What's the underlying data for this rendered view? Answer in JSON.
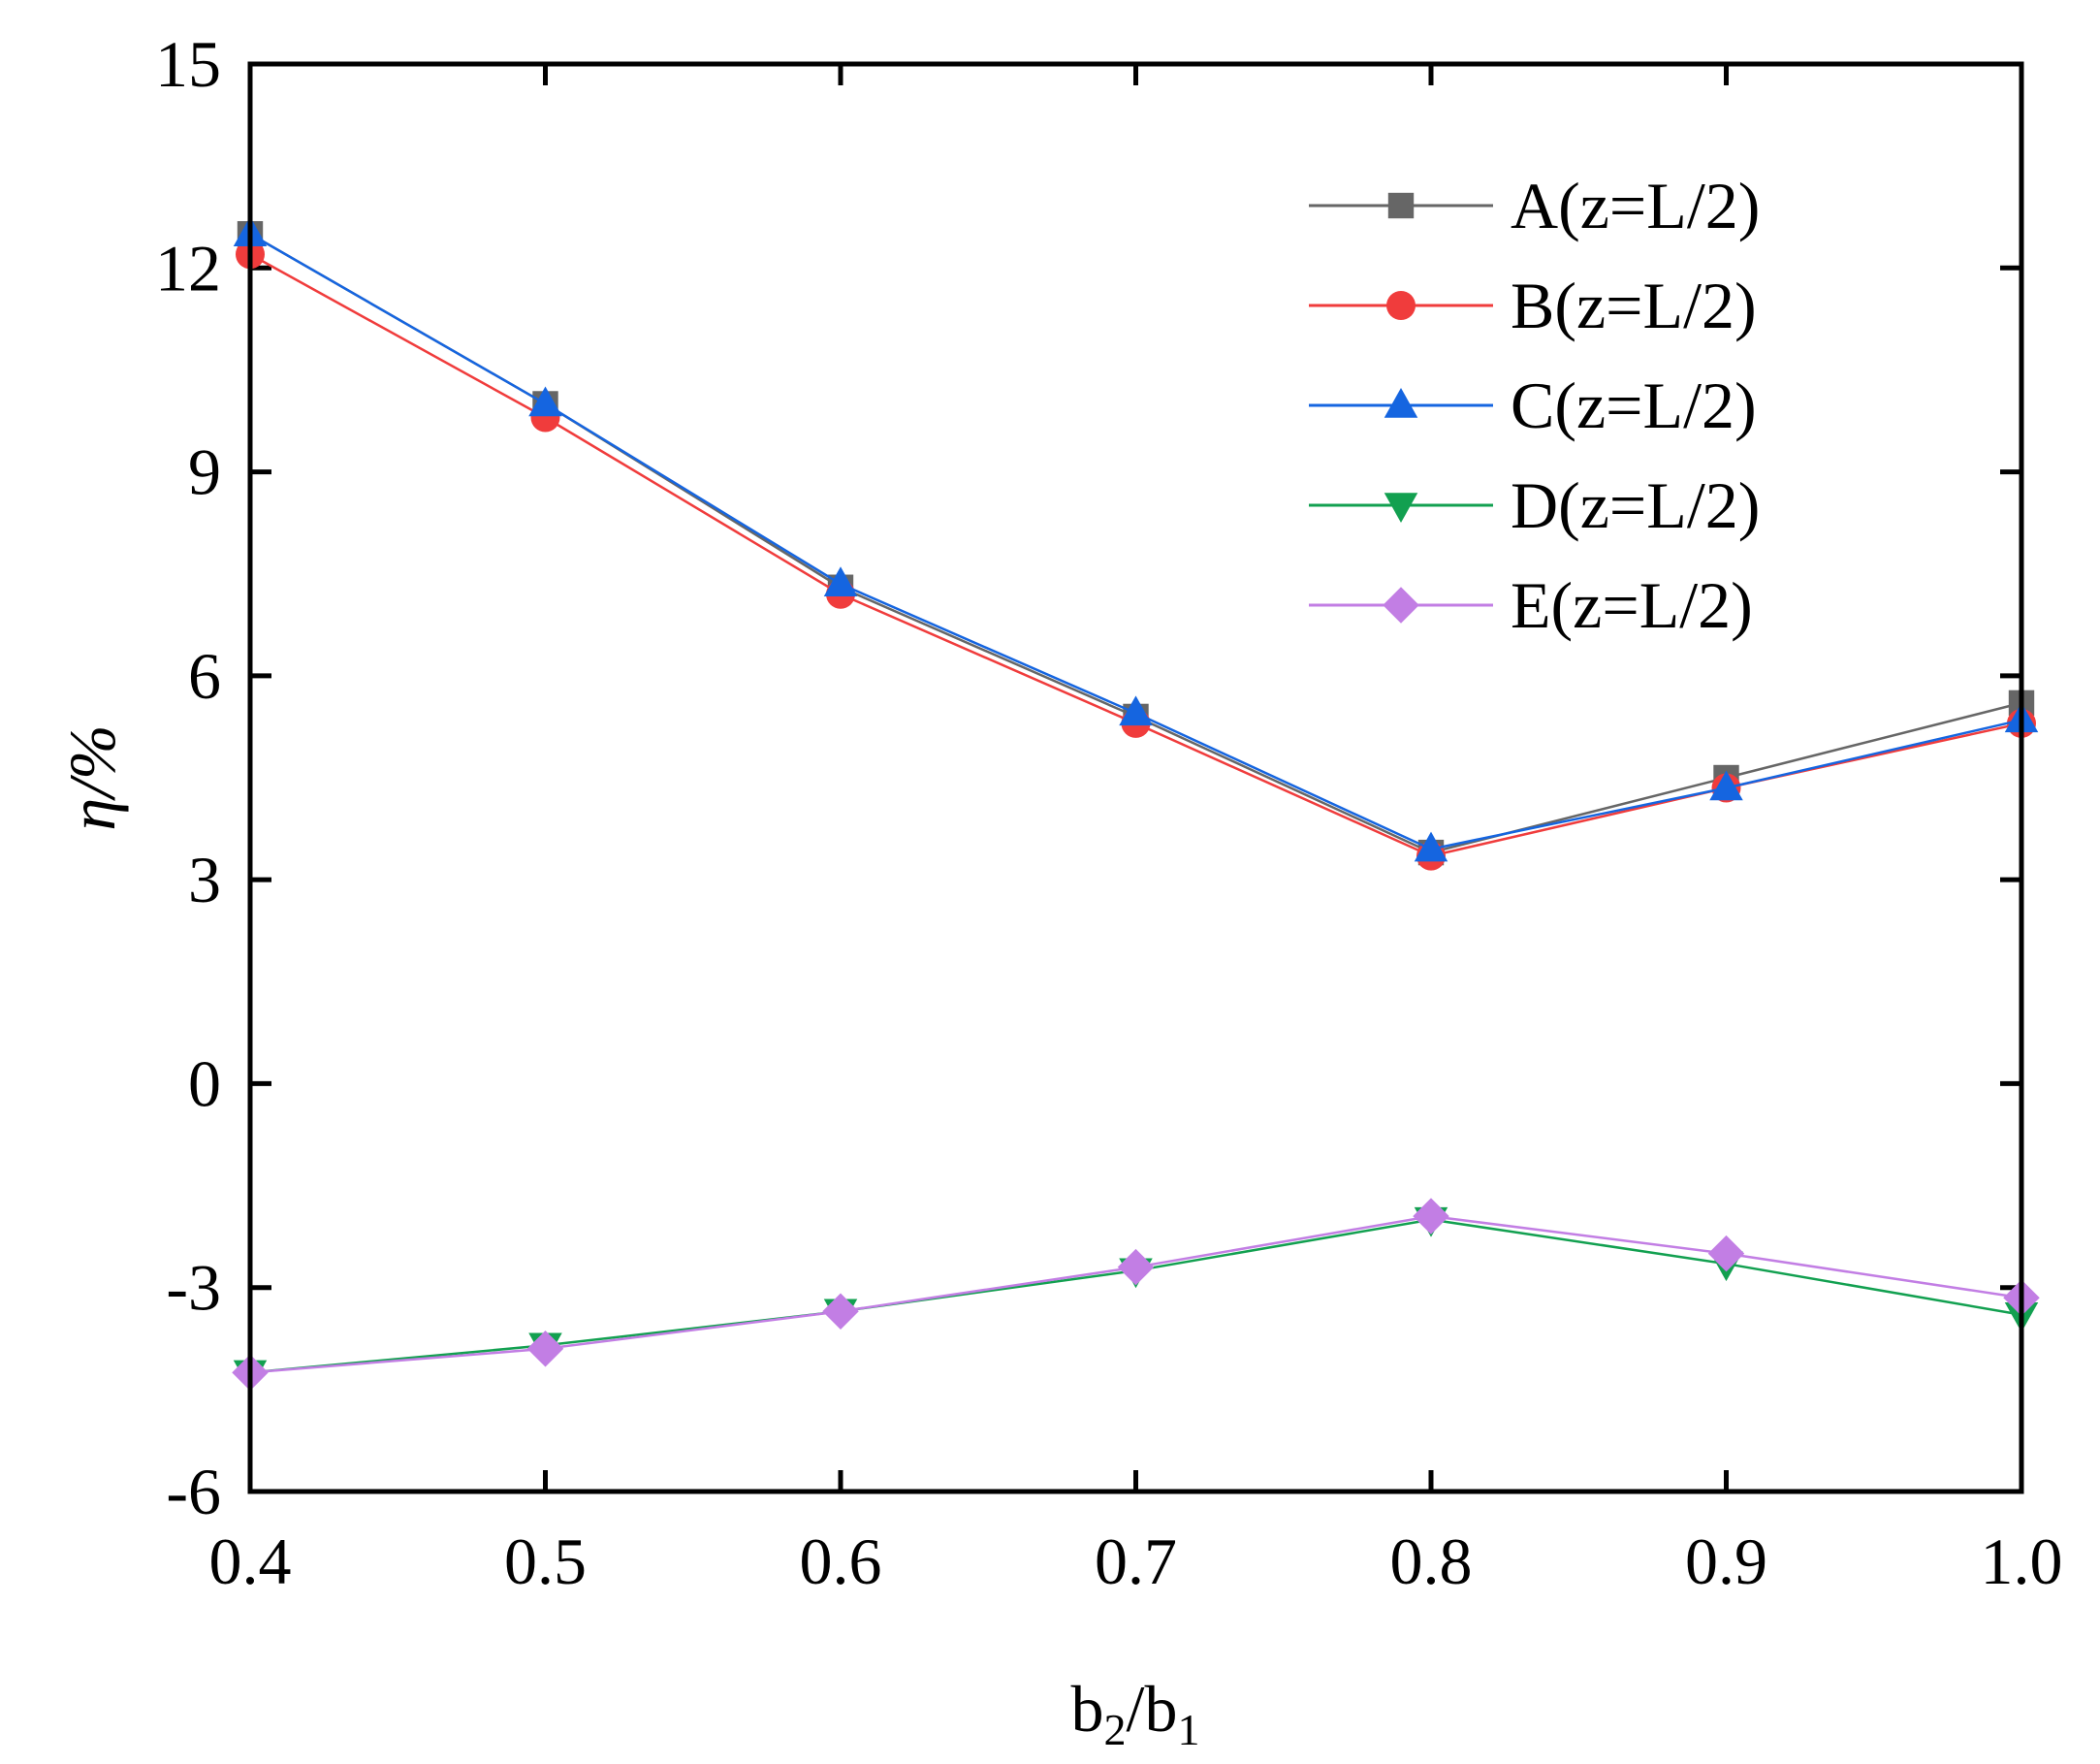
{
  "chart_data": {
    "type": "line",
    "title": "",
    "xlabel": "b",
    "xlabel_parts": {
      "base1": "b",
      "sub1": "2",
      "slash": "/",
      "base2": "b",
      "sub2": "1"
    },
    "ylabel": "η/%",
    "xlim": [
      0.4,
      1.0
    ],
    "ylim": [
      -6,
      15
    ],
    "x": [
      0.4,
      0.5,
      0.6,
      0.7,
      0.8,
      0.9,
      1.0
    ],
    "x_tick_labels": [
      "0.4",
      "0.5",
      "0.6",
      "0.7",
      "0.8",
      "0.9",
      "1.0"
    ],
    "y_ticks": [
      -6,
      -3,
      0,
      3,
      6,
      9,
      12,
      15
    ],
    "y_tick_labels": [
      "-6",
      "-3",
      "0",
      "3",
      "6",
      "9",
      "12",
      "15"
    ],
    "grid": false,
    "legend_position": "top-right",
    "series": [
      {
        "name": "A(z=L/2)",
        "color": "#666666",
        "marker": "square",
        "values": [
          12.5,
          10.0,
          7.3,
          5.4,
          3.4,
          4.5,
          5.6
        ]
      },
      {
        "name": "B(z=L/2)",
        "color": "#f03c3c",
        "marker": "circle",
        "values": [
          12.2,
          9.8,
          7.2,
          5.3,
          3.35,
          4.35,
          5.3
        ]
      },
      {
        "name": "C(z=L/2)",
        "color": "#1565e0",
        "marker": "triangle-up",
        "values": [
          12.5,
          10.0,
          7.35,
          5.45,
          3.45,
          4.35,
          5.35
        ]
      },
      {
        "name": "D(z=L/2)",
        "color": "#12a050",
        "marker": "triangle-down",
        "values": [
          -4.25,
          -3.85,
          -3.35,
          -2.75,
          -2.0,
          -2.65,
          -3.4
        ]
      },
      {
        "name": "E(z=L/2)",
        "color": "#c27ee4",
        "marker": "diamond",
        "values": [
          -4.25,
          -3.9,
          -3.35,
          -2.7,
          -1.95,
          -2.5,
          -3.15
        ]
      }
    ]
  }
}
